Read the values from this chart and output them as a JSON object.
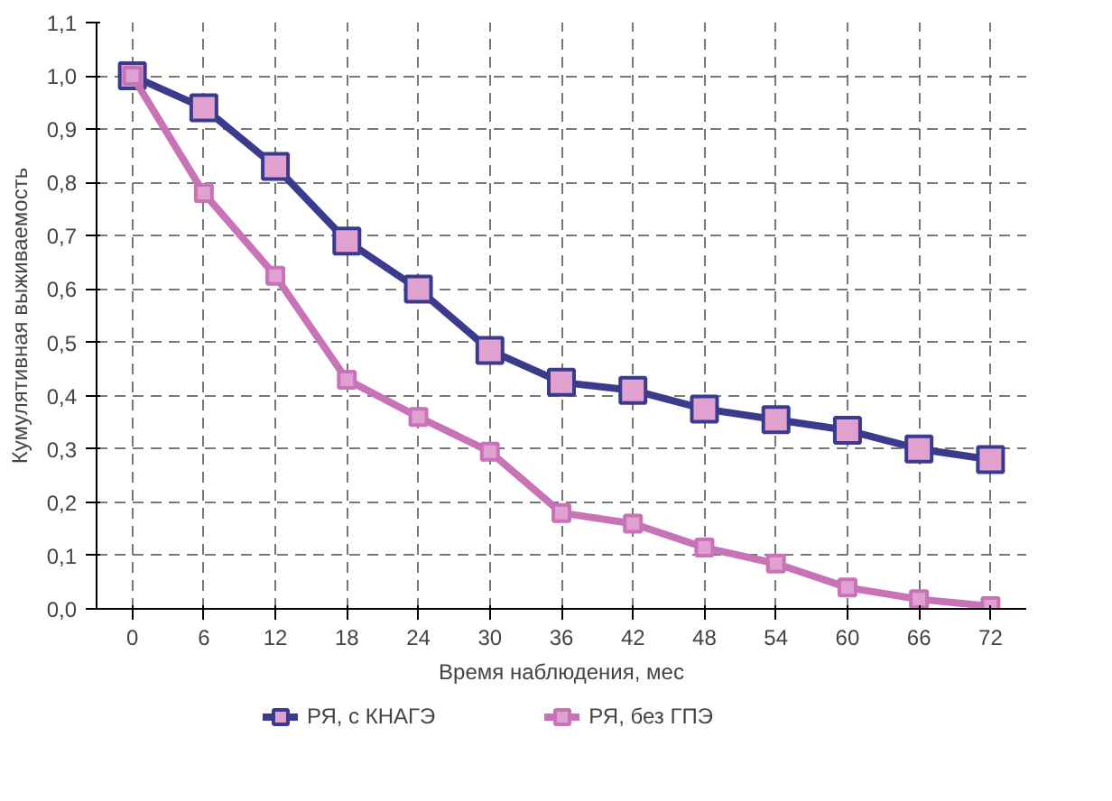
{
  "chart_data": {
    "type": "line",
    "xlabel": "Время наблюдения, мес",
    "ylabel": "Кумулятивная выживаемость",
    "x": [
      0,
      6,
      12,
      18,
      24,
      30,
      36,
      42,
      48,
      54,
      60,
      66,
      72
    ],
    "xlim": [
      -3,
      75
    ],
    "xticks": [
      0,
      6,
      12,
      18,
      24,
      30,
      36,
      42,
      48,
      54,
      60,
      66,
      72
    ],
    "ylim": [
      0,
      1.1
    ],
    "yticks": [
      {
        "value": 0,
        "label": "0,0"
      },
      {
        "value": 0.1,
        "label": "0,1"
      },
      {
        "value": 0.2,
        "label": "0,2"
      },
      {
        "value": 0.3,
        "label": "0,3"
      },
      {
        "value": 0.4,
        "label": "0,4"
      },
      {
        "value": 0.5,
        "label": "0,5"
      },
      {
        "value": 0.6,
        "label": "0,6"
      },
      {
        "value": 0.7,
        "label": "0,7"
      },
      {
        "value": 0.8,
        "label": "0,8"
      },
      {
        "value": 0.9,
        "label": "0,9"
      },
      {
        "value": 1.0,
        "label": "1,0"
      },
      {
        "value": 1.1,
        "label": "1,1"
      }
    ],
    "grid": true,
    "legend": "bottom",
    "marker": "square",
    "line_style": "solid",
    "series": [
      {
        "name": "РЯ, с КНАГЭ",
        "color": "#3b3b8e",
        "values": [
          1.0,
          0.94,
          0.83,
          0.69,
          0.6,
          0.485,
          0.425,
          0.41,
          0.375,
          0.355,
          0.335,
          0.3,
          0.28
        ]
      },
      {
        "name": "РЯ, без ГПЭ",
        "color": "#c872b8",
        "values": [
          1.0,
          0.78,
          0.625,
          0.43,
          0.36,
          0.295,
          0.18,
          0.16,
          0.115,
          0.085,
          0.04,
          0.018,
          0.005
        ]
      }
    ]
  }
}
